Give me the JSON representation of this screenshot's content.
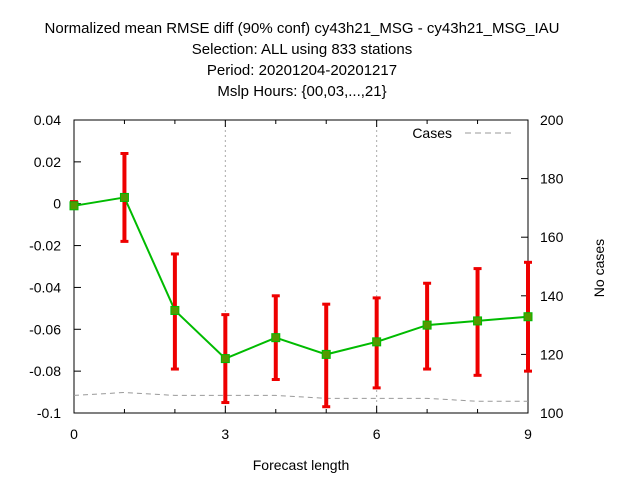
{
  "chart_data": {
    "type": "line",
    "title_lines": [
      "Normalized mean RMSE diff (90% conf) cy43h21_MSG - cy43h21_MSG_IAU",
      "Selection: ALL using   833 stations",
      "Period: 20201204-20201217",
      "Mslp   Hours: {00,03,...,21}"
    ],
    "xlabel": "Forecast length",
    "ylabel": "",
    "y2label": "No cases",
    "xlim": [
      0,
      9
    ],
    "ylim": [
      -0.1,
      0.04
    ],
    "y2lim": [
      100,
      200
    ],
    "xticks": [
      "0",
      "3",
      "6",
      "9"
    ],
    "yticks": [
      "0.04",
      "0.02",
      "0",
      "-0.02",
      "-0.04",
      "-0.06",
      "-0.08",
      "-0.1"
    ],
    "y2ticks": [
      "200",
      "180",
      "160",
      "140",
      "120",
      "100"
    ],
    "grid": true,
    "legend_position": "top-right",
    "x": [
      0,
      1,
      2,
      3,
      4,
      5,
      6,
      7,
      8,
      9
    ],
    "series": [
      {
        "name": "",
        "axis": "left",
        "color": "#00bb00",
        "values": [
          -0.001,
          0.003,
          -0.051,
          -0.074,
          -0.064,
          -0.072,
          -0.066,
          -0.058,
          -0.056,
          -0.054
        ],
        "err_low": [
          -0.002,
          -0.018,
          -0.079,
          -0.095,
          -0.084,
          -0.097,
          -0.088,
          -0.079,
          -0.082,
          -0.08
        ],
        "err_high": [
          0.001,
          0.024,
          -0.024,
          -0.053,
          -0.044,
          -0.048,
          -0.045,
          -0.038,
          -0.031,
          -0.028
        ],
        "error_color": "#ee0000",
        "marker_color": "#559900"
      },
      {
        "name": "Cases",
        "axis": "right",
        "color": "#999999",
        "style": "dashed",
        "values": [
          106,
          107,
          106,
          106,
          106,
          105,
          105,
          105,
          104,
          104
        ]
      }
    ]
  }
}
